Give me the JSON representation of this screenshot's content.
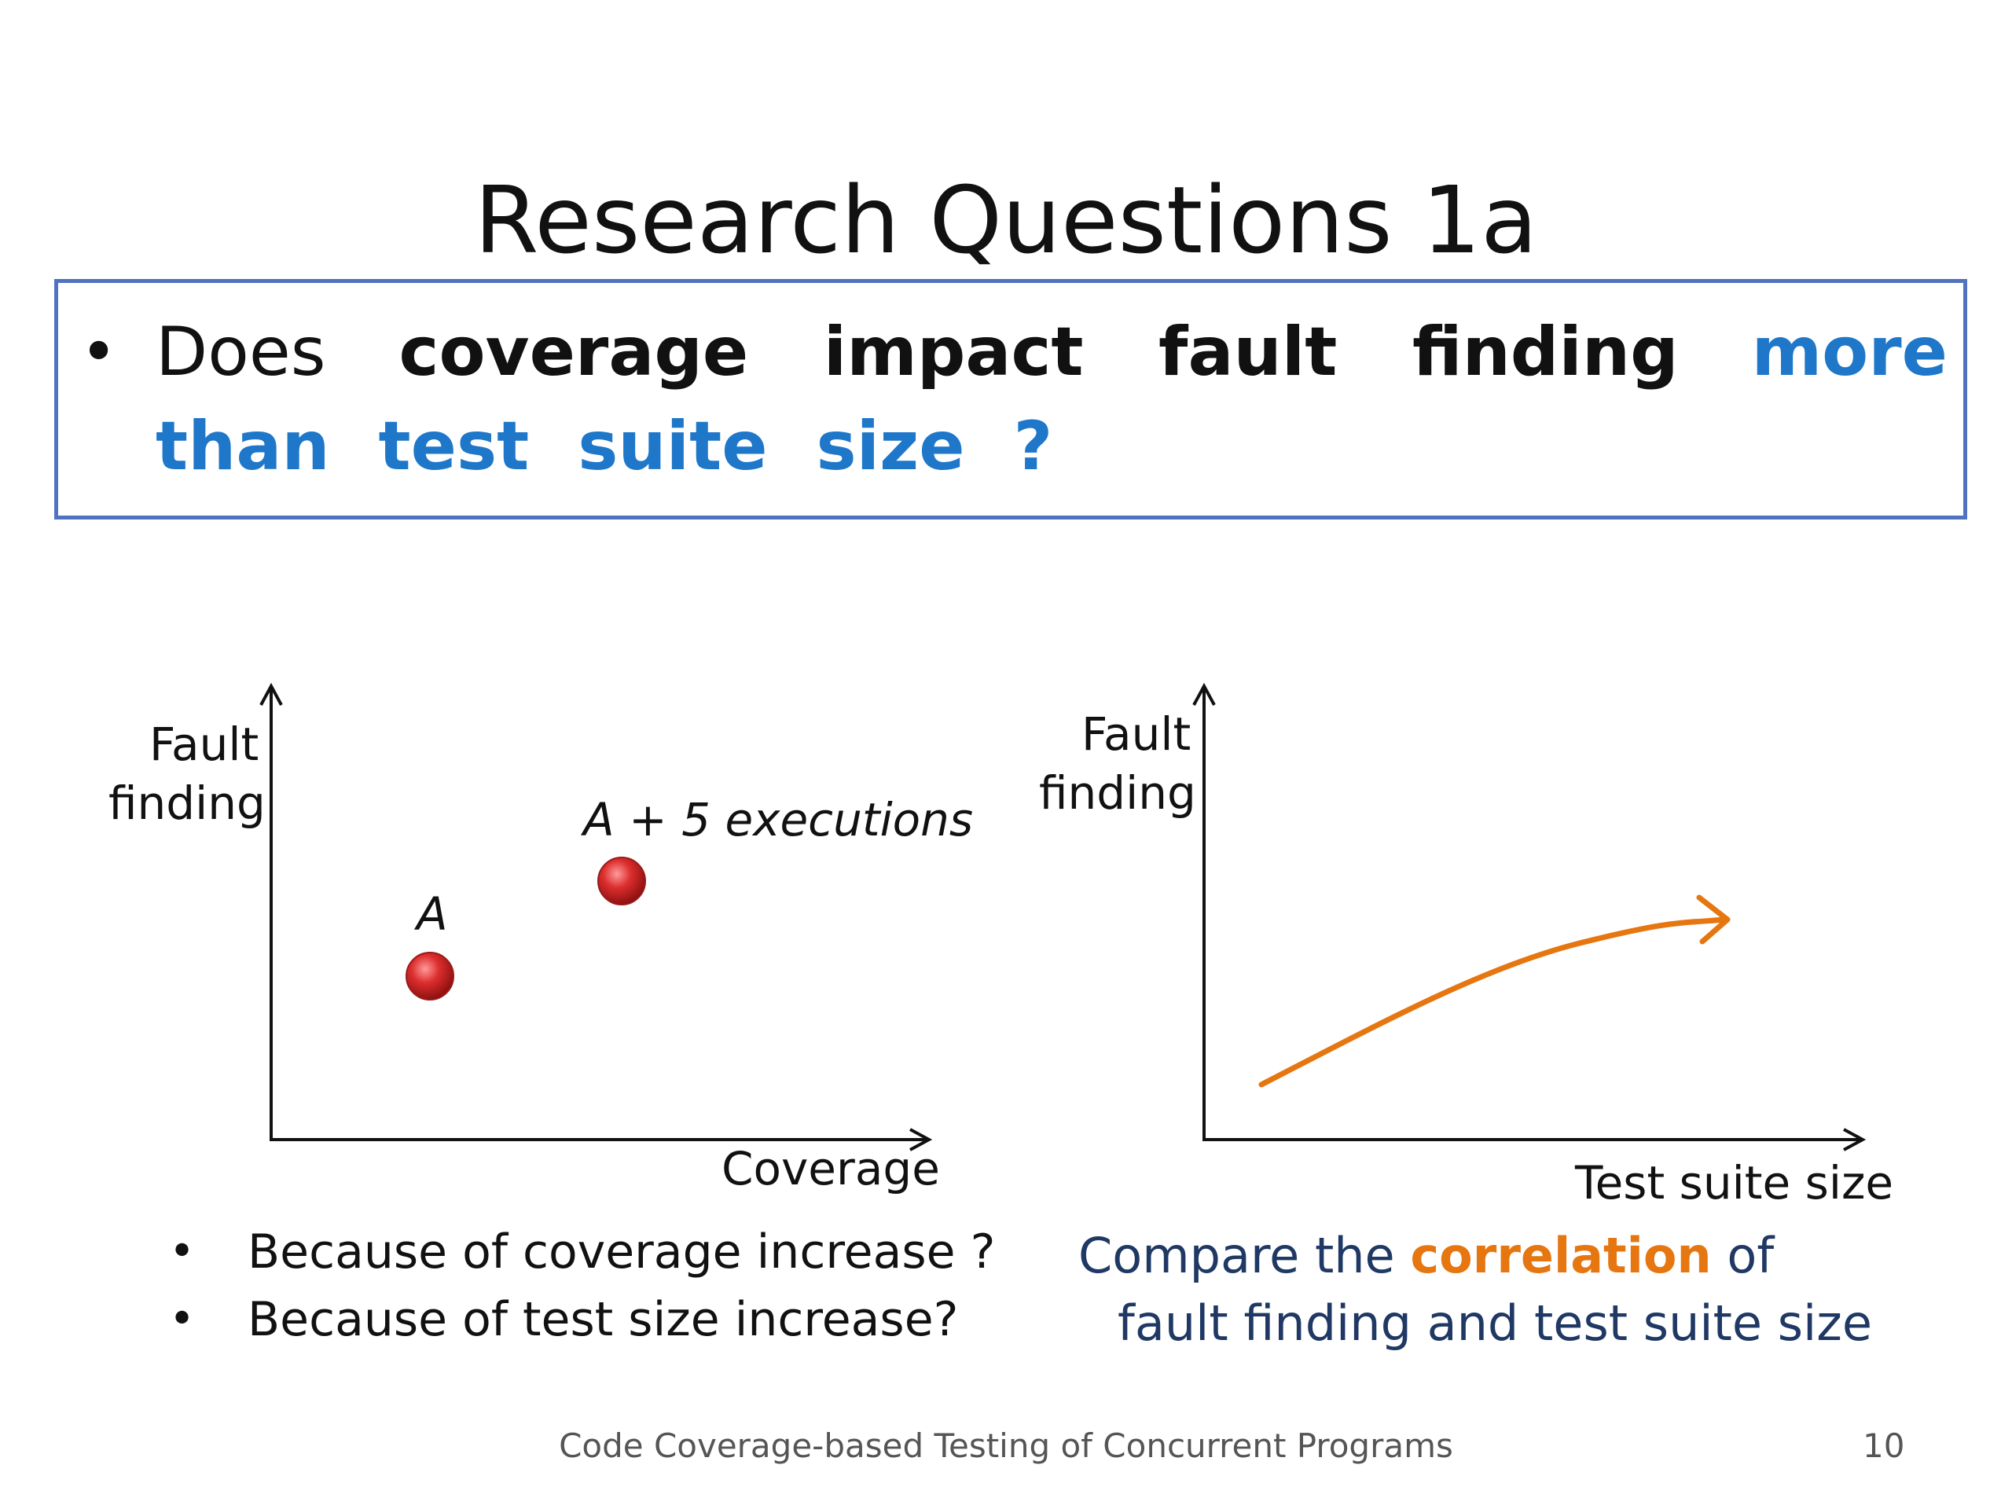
{
  "slide": {
    "title": "Research Questions 1a",
    "question": {
      "bullet": "•",
      "prefix": "Does ",
      "bold": "coverage impact fault finding",
      "space": " ",
      "blue": "more than test suite size ?"
    },
    "left_chart": {
      "y_label_line1": "Fault",
      "y_label_line2": "finding",
      "x_label": "Coverage",
      "point_a_label": "A",
      "point_b_label": "A + 5 executions",
      "point_color": "#d92b2b"
    },
    "right_chart": {
      "y_label_line1": "Fault",
      "y_label_line2": "finding",
      "x_label": "Test suite size",
      "curve_color": "#e67610"
    },
    "bullets": [
      "Because of coverage increase ?",
      "Because of test size increase?"
    ],
    "compare": {
      "part1": "Compare the ",
      "highlight": "correlation",
      "part2": " of",
      "line2": "fault finding and test suite size"
    },
    "footer": "Code Coverage-based Testing of Concurrent Programs",
    "page_number": "10"
  }
}
